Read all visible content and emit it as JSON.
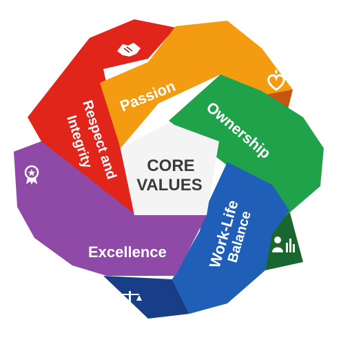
{
  "center": {
    "line1": "CORE",
    "line2": "VALUES"
  },
  "values": [
    {
      "id": "passion",
      "line1": "Passion",
      "line2": "",
      "color": "#f39c12",
      "icon": "heart-flame-icon"
    },
    {
      "id": "ownership",
      "line1": "Ownership",
      "line2": "",
      "color": "#1fa24a",
      "icon": "person-chart-icon"
    },
    {
      "id": "work-life-balance",
      "line1": "Work-Life",
      "line2": "Balance",
      "color": "#1f5fb8",
      "icon": "scales-icon"
    },
    {
      "id": "excellence",
      "line1": "Excellence",
      "line2": "",
      "color": "#8e4aa6",
      "icon": "award-badge-icon"
    },
    {
      "id": "respect-and-integrity",
      "line1": "Respect and",
      "line2": "Integrity",
      "color": "#d91e26",
      "icon": "handshake-icon"
    }
  ]
}
